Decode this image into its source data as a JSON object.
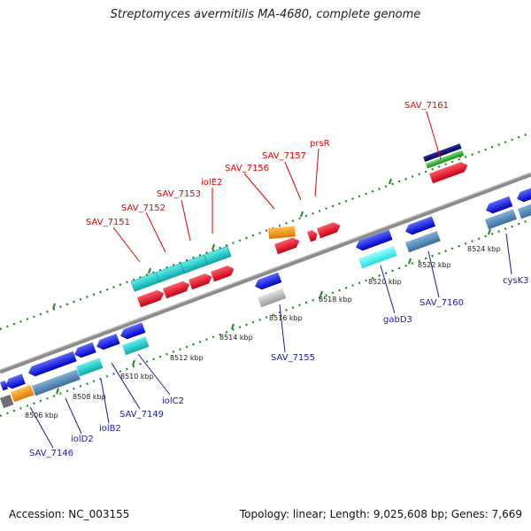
{
  "title": "Streptomyces avermitilis MA-4680, complete genome",
  "footer": {
    "accession": "Accession: NC_003155",
    "summary": "Topology: linear; Length: 9,025,608 bp; Genes: 7,669"
  },
  "ticks": [
    "8506 kbp",
    "8508 kbp",
    "8510 kbp",
    "8512 kbp",
    "8514 kbp",
    "8516 kbp",
    "8518 kbp",
    "8520 kbp",
    "8522 kbp",
    "8524 kbp"
  ],
  "labels": {
    "SAV_7151": "SAV_7151",
    "SAV_7152": "SAV_7152",
    "SAV_7153": "SAV_7153",
    "iolE2": "iolE2",
    "SAV_7156": "SAV_7156",
    "SAV_7157": "SAV_7157",
    "prsR": "prsR",
    "SAV_7161": "SAV_7161",
    "SAV_7155": "SAV_7155",
    "gabD3": "gabD3",
    "SAV_7160": "SAV_7160",
    "cysK3": "cysK3",
    "SAV_7146": "SAV_7146",
    "iolD2": "iolD2",
    "iolB2": "iolB2",
    "SAV_7149": "SAV_7149",
    "iolC2": "iolC2"
  },
  "colors": {
    "red": "#e8001a",
    "blue": "#1a1aee",
    "cyan": "#20c8c8",
    "steel": "#4a86b8",
    "orange": "#f59a10",
    "gray": "#c0c0c0",
    "navy": "#101080",
    "green": "#30b030",
    "backbone": "#8c8c8c",
    "dots": "#1a8a1a"
  }
}
